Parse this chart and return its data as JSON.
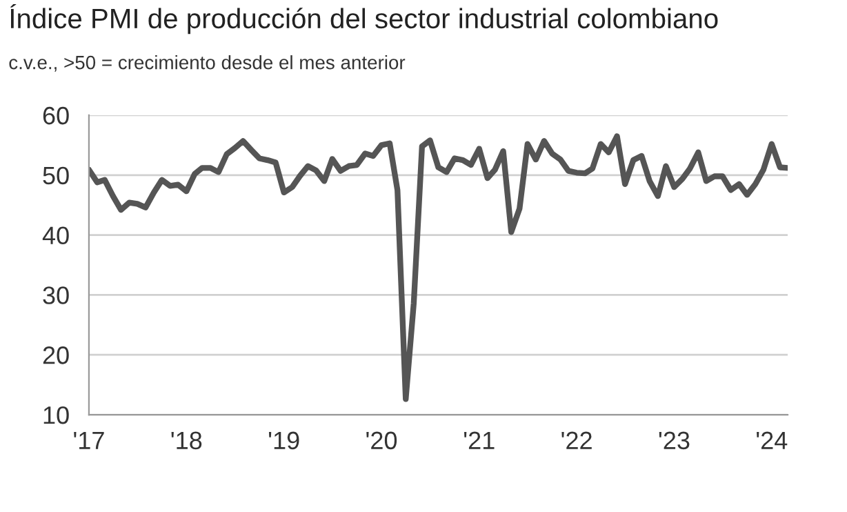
{
  "chart_data": {
    "type": "line",
    "title": "Índice PMI de producción del sector industrial colombiano",
    "subtitle": "c.v.e., >50 = crecimiento desde el mes anterior",
    "x": [
      "2017-01",
      "2017-02",
      "2017-03",
      "2017-04",
      "2017-05",
      "2017-06",
      "2017-07",
      "2017-08",
      "2017-09",
      "2017-10",
      "2017-11",
      "2017-12",
      "2018-01",
      "2018-02",
      "2018-03",
      "2018-04",
      "2018-05",
      "2018-06",
      "2018-07",
      "2018-08",
      "2018-09",
      "2018-10",
      "2018-11",
      "2018-12",
      "2019-01",
      "2019-02",
      "2019-03",
      "2019-04",
      "2019-05",
      "2019-06",
      "2019-07",
      "2019-08",
      "2019-09",
      "2019-10",
      "2019-11",
      "2019-12",
      "2020-01",
      "2020-02",
      "2020-03",
      "2020-04",
      "2020-05",
      "2020-06",
      "2020-07",
      "2020-08",
      "2020-09",
      "2020-10",
      "2020-11",
      "2020-12",
      "2021-01",
      "2021-02",
      "2021-03",
      "2021-04",
      "2021-05",
      "2021-06",
      "2021-07",
      "2021-08",
      "2021-09",
      "2021-10",
      "2021-11",
      "2021-12",
      "2022-01",
      "2022-02",
      "2022-03",
      "2022-04",
      "2022-05",
      "2022-06",
      "2022-07",
      "2022-08",
      "2022-09",
      "2022-10",
      "2022-11",
      "2022-12",
      "2023-01",
      "2023-02",
      "2023-03",
      "2023-04",
      "2023-05",
      "2023-06",
      "2023-07",
      "2023-08",
      "2023-09",
      "2023-10",
      "2023-11",
      "2023-12",
      "2024-01",
      "2024-02",
      "2024-03"
    ],
    "series": [
      {
        "color": "#555555",
        "values": [
          50.9,
          48.8,
          49.2,
          46.5,
          44.2,
          45.4,
          45.2,
          44.6,
          47.1,
          49.2,
          48.2,
          48.4,
          47.3,
          50.2,
          51.2,
          51.2,
          50.5,
          53.5,
          54.5,
          55.7,
          54.2,
          52.8,
          52.5,
          52.1,
          47.1,
          48.0,
          49.8,
          51.5,
          50.8,
          49.0,
          52.7,
          50.7,
          51.5,
          51.7,
          53.6,
          53.2,
          55.0,
          55.3,
          47.5,
          12.6,
          28.6,
          54.8,
          55.8,
          51.3,
          50.5,
          52.8,
          52.5,
          51.7,
          54.4,
          49.5,
          50.9,
          54.0,
          40.5,
          44.4,
          55.2,
          52.6,
          55.7,
          53.6,
          52.6,
          50.7,
          50.4,
          50.3,
          51.1,
          55.2,
          53.8,
          56.5,
          48.5,
          52.5,
          53.2,
          49.0,
          46.5,
          51.5,
          48.0,
          49.4,
          51.1,
          53.8,
          49.0,
          49.8,
          49.8,
          47.5,
          48.5,
          46.7,
          48.5,
          50.9,
          55.2,
          51.3,
          51.2
        ]
      }
    ],
    "xlim": [
      "2017-01",
      "2024-03"
    ],
    "xticks": [
      {
        "value": "2017-01",
        "label": "'17"
      },
      {
        "value": "2018-01",
        "label": "'18"
      },
      {
        "value": "2019-01",
        "label": "'19"
      },
      {
        "value": "2020-01",
        "label": "'20"
      },
      {
        "value": "2021-01",
        "label": "'21"
      },
      {
        "value": "2022-01",
        "label": "'22"
      },
      {
        "value": "2023-01",
        "label": "'23"
      },
      {
        "value": "2024-01",
        "label": "'24"
      }
    ],
    "ylim": [
      10,
      60
    ],
    "yticks": [
      10,
      20,
      30,
      40,
      50,
      60
    ],
    "grid": "y",
    "line_style": "solid",
    "marker": "none"
  }
}
